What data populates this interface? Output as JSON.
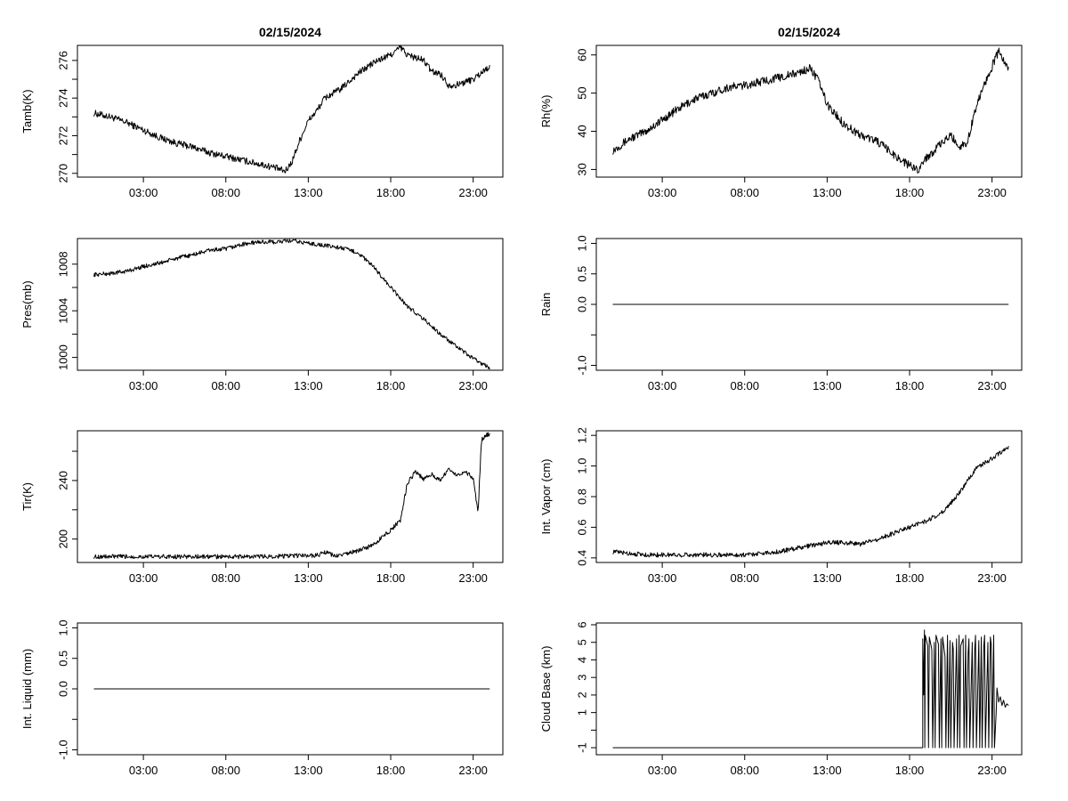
{
  "chart_data": [
    {
      "id": "tamb",
      "type": "line",
      "title": "02/15/2024",
      "ylabel": "Tamb(K)",
      "xlabel": "",
      "xlim": [
        -1,
        24.8
      ],
      "ylim": [
        269.8,
        276.8
      ],
      "xticks": [
        "03:00",
        "08:00",
        "13:00",
        "18:00",
        "23:00"
      ],
      "yticks": [
        270,
        271,
        272,
        273,
        274,
        275,
        276
      ],
      "ytick_labels": [
        "270",
        "",
        "272",
        "",
        "274",
        "",
        "276"
      ],
      "noise": 0.18,
      "x": [
        0,
        1,
        2,
        3,
        4,
        5,
        6,
        7,
        8,
        9,
        10,
        11,
        11.6,
        12,
        12.5,
        13,
        13.5,
        14,
        15,
        16,
        17,
        18,
        18.6,
        19,
        20,
        20.5,
        21,
        21.5,
        22,
        23,
        24
      ],
      "y": [
        273.2,
        273,
        272.7,
        272.3,
        271.9,
        271.6,
        271.4,
        271.1,
        270.9,
        270.7,
        270.5,
        270.3,
        270.1,
        270.6,
        271.8,
        272.8,
        273.3,
        274,
        274.5,
        275.3,
        275.9,
        276.3,
        276.7,
        276.3,
        276,
        275.4,
        275.3,
        274.7,
        274.7,
        275,
        275.7
      ]
    },
    {
      "id": "rh",
      "type": "line",
      "title": "02/15/2024",
      "ylabel": "Rh(%)",
      "xlabel": "",
      "xlim": [
        -1,
        24.8
      ],
      "ylim": [
        28,
        62.5
      ],
      "xticks": [
        "03:00",
        "08:00",
        "13:00",
        "18:00",
        "23:00"
      ],
      "yticks": [
        30,
        40,
        50,
        60
      ],
      "ytick_labels": [
        "30",
        "40",
        "50",
        "60"
      ],
      "noise": 1.1,
      "x": [
        0,
        1,
        2,
        3,
        4,
        5,
        6,
        7,
        8,
        9,
        10,
        11,
        12,
        12.5,
        13,
        14,
        15,
        16,
        17,
        18,
        18.5,
        19,
        20,
        20.5,
        21,
        21.5,
        22,
        22.5,
        23,
        23.4,
        24
      ],
      "y": [
        35,
        38,
        40,
        43,
        46,
        48.5,
        50,
        51.5,
        52,
        53,
        54,
        55,
        56.5,
        53,
        47,
        42,
        39,
        37.5,
        34,
        31,
        30,
        33,
        37,
        39,
        36,
        37,
        46,
        52,
        57,
        61,
        56
      ]
    },
    {
      "id": "pres",
      "type": "line",
      "title": "",
      "ylabel": "Pres(mb)",
      "xlabel": "",
      "xlim": [
        -1,
        24.8
      ],
      "ylim": [
        998.9,
        1010.2
      ],
      "xticks": [
        "03:00",
        "08:00",
        "13:00",
        "18:00",
        "23:00"
      ],
      "yticks": [
        1000,
        1002,
        1004,
        1006,
        1008
      ],
      "ytick_labels": [
        "1000",
        "",
        "1004",
        "",
        "1008"
      ],
      "noise": 0.18,
      "x": [
        0,
        1,
        2,
        3,
        4,
        5,
        6,
        7,
        8,
        9,
        10,
        11,
        12,
        13,
        14,
        15,
        16,
        17,
        18,
        19,
        20,
        21,
        22,
        23,
        24
      ],
      "y": [
        1007.1,
        1007.2,
        1007.4,
        1007.8,
        1008.1,
        1008.5,
        1008.8,
        1009.2,
        1009.3,
        1009.7,
        1009.9,
        1009.9,
        1010,
        1009.8,
        1009.6,
        1009.4,
        1009,
        1007.7,
        1006,
        1004.4,
        1003.3,
        1002,
        1000.9,
        999.9,
        999.1
      ]
    },
    {
      "id": "rain",
      "type": "line",
      "title": "",
      "ylabel": "Rain",
      "xlabel": "",
      "xlim": [
        -1,
        24.8
      ],
      "ylim": [
        -1.08,
        1.08
      ],
      "xticks": [
        "03:00",
        "08:00",
        "13:00",
        "18:00",
        "23:00"
      ],
      "yticks": [
        -1.0,
        -0.5,
        0.0,
        0.5,
        1.0
      ],
      "ytick_labels": [
        "-1.0",
        "",
        "0.0",
        "0.5",
        "1.0"
      ],
      "noise": 0,
      "x": [
        0,
        24
      ],
      "y": [
        0,
        0
      ]
    },
    {
      "id": "tir",
      "type": "line",
      "title": "",
      "ylabel": "Tir(K)",
      "xlabel": "",
      "xlim": [
        -1,
        24.8
      ],
      "ylim": [
        184,
        274
      ],
      "xticks": [
        "03:00",
        "08:00",
        "13:00",
        "18:00",
        "23:00"
      ],
      "yticks": [
        200,
        220,
        240,
        260
      ],
      "ytick_labels": [
        "200",
        "",
        "240",
        ""
      ],
      "noise": 1.5,
      "x": [
        0,
        2,
        4,
        6,
        8,
        10,
        12,
        13.6,
        14,
        14.6,
        15,
        16,
        17,
        17.5,
        18,
        18.6,
        19,
        19.5,
        20,
        20.5,
        21,
        21.5,
        22,
        22.5,
        23,
        23.3,
        23.5,
        23.8,
        24
      ],
      "y": [
        188,
        188,
        188,
        188,
        188,
        188,
        188.5,
        189,
        191,
        188.5,
        189,
        192,
        196,
        202,
        206,
        213,
        238,
        246,
        241,
        244,
        240,
        248,
        244,
        246,
        242,
        218,
        268,
        271,
        272
      ]
    },
    {
      "id": "vapor",
      "type": "line",
      "title": "",
      "ylabel": "Int. Vapor (cm)",
      "xlabel": "",
      "xlim": [
        -1,
        24.8
      ],
      "ylim": [
        0.37,
        1.23
      ],
      "xticks": [
        "03:00",
        "08:00",
        "13:00",
        "18:00",
        "23:00"
      ],
      "yticks": [
        0.4,
        0.6,
        0.8,
        1.0,
        1.2
      ],
      "ytick_labels": [
        "0.4",
        "0.6",
        "0.8",
        "1.0",
        "1.2"
      ],
      "noise": 0.015,
      "x": [
        0,
        1,
        2,
        3,
        4,
        5,
        6,
        7,
        8,
        9,
        10,
        11,
        12,
        13,
        14,
        15,
        16,
        17,
        18,
        19,
        20,
        21,
        22,
        23,
        24
      ],
      "y": [
        0.44,
        0.43,
        0.42,
        0.42,
        0.42,
        0.42,
        0.42,
        0.42,
        0.42,
        0.43,
        0.44,
        0.46,
        0.48,
        0.5,
        0.5,
        0.49,
        0.52,
        0.56,
        0.6,
        0.64,
        0.7,
        0.82,
        0.98,
        1.05,
        1.12
      ]
    },
    {
      "id": "liquid",
      "type": "line",
      "title": "",
      "ylabel": "Int. Liquid (mm)",
      "xlabel": "",
      "xlim": [
        -1,
        24.8
      ],
      "ylim": [
        -1.08,
        1.08
      ],
      "xticks": [
        "03:00",
        "08:00",
        "13:00",
        "18:00",
        "23:00"
      ],
      "yticks": [
        -1.0,
        -0.5,
        0.0,
        0.5,
        1.0
      ],
      "ytick_labels": [
        "-1.0",
        "",
        "0.0",
        "0.5",
        "1.0"
      ],
      "noise": 0,
      "x": [
        0,
        24
      ],
      "y": [
        0,
        0
      ]
    },
    {
      "id": "cloud",
      "type": "line",
      "title": "",
      "ylabel": "Cloud Base (km)",
      "xlabel": "",
      "xlim": [
        -1,
        24.8
      ],
      "ylim": [
        -1.4,
        6.1
      ],
      "xticks": [
        "03:00",
        "08:00",
        "13:00",
        "18:00",
        "23:00"
      ],
      "yticks": [
        -1,
        0,
        1,
        2,
        3,
        4,
        5,
        6
      ],
      "ytick_labels": [
        "-1",
        "",
        "1",
        "2",
        "3",
        "4",
        "5",
        "6"
      ],
      "noise": 0,
      "x": [
        0,
        18.8,
        18.8,
        18.85,
        18.9,
        18.92,
        18.95,
        19.1,
        19.15,
        19.2,
        19.35,
        19.4,
        19.5,
        19.55,
        19.6,
        19.75,
        19.8,
        19.9,
        19.95,
        20.0,
        20.15,
        20.2,
        20.3,
        20.35,
        20.45,
        20.5,
        20.6,
        20.65,
        20.7,
        20.85,
        20.9,
        21.0,
        21.05,
        21.1,
        21.25,
        21.3,
        21.4,
        21.45,
        21.55,
        21.6,
        21.65,
        21.8,
        21.85,
        21.95,
        22.0,
        22.05,
        22.2,
        22.25,
        22.35,
        22.4,
        22.5,
        22.55,
        22.6,
        22.75,
        22.8,
        22.9,
        22.95,
        23.0,
        23.1,
        23.15,
        23.25,
        23.3,
        23.4,
        23.5,
        23.6,
        23.7,
        23.8,
        23.9,
        24.0
      ],
      "y": [
        -1,
        -1,
        5.2,
        2.0,
        5.7,
        -1,
        5.4,
        4.8,
        -1,
        5.3,
        4.6,
        -1,
        5.0,
        -1,
        5.4,
        4.9,
        -1,
        5.2,
        -1,
        5.3,
        4.2,
        -1,
        5.4,
        -1,
        5.1,
        -1,
        5.0,
        4.6,
        -1,
        5.2,
        -1,
        5.4,
        -1,
        4.8,
        5.2,
        -1,
        5.4,
        -1,
        4.4,
        5.2,
        -1,
        5.0,
        -1,
        4.6,
        5.4,
        -1,
        5.1,
        -1,
        5.3,
        -1,
        4.8,
        5.4,
        -1,
        5.0,
        -1,
        5.3,
        4.9,
        -1,
        5.4,
        -1,
        1.0,
        2.4,
        1.6,
        1.9,
        1.4,
        1.7,
        1.3,
        1.5,
        1.4
      ]
    }
  ]
}
